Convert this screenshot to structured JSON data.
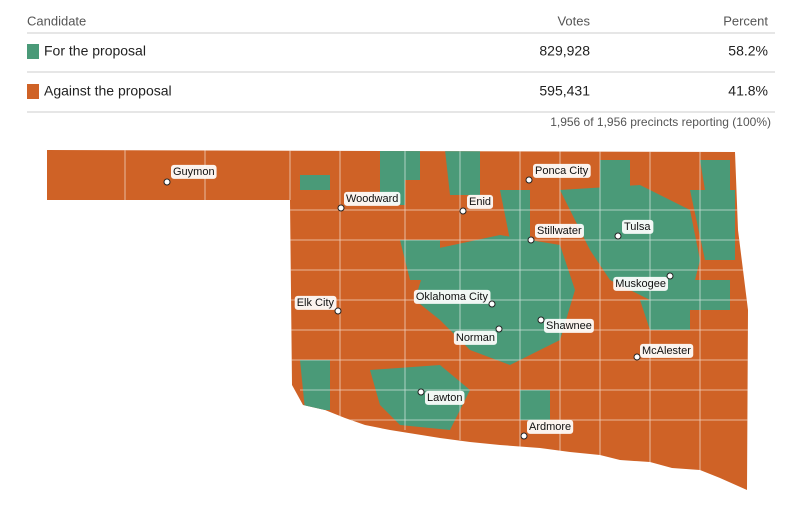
{
  "table": {
    "headers": [
      "Candidate",
      "Votes",
      "Percent"
    ],
    "rows": [
      {
        "color": "#4a9a78",
        "cells": [
          "For the proposal",
          "829,928",
          "58.2%"
        ]
      },
      {
        "color": "#cf6226",
        "cells": [
          "Against the proposal",
          "595,431",
          "41.8%"
        ]
      }
    ],
    "footnote": "1,956 of 1,956 precincts reporting (100%)"
  },
  "map": {
    "base_color": "#cf6226",
    "highlight_color": "#4a9a78",
    "cities": [
      "Guymon",
      "Woodward",
      "Enid",
      "Ponca City",
      "Stillwater",
      "Tulsa",
      "Muskogee",
      "Oklahoma City",
      "Elk City",
      "Shawnee",
      "Norman",
      "McAlester",
      "Lawton",
      "Ardmore"
    ]
  }
}
